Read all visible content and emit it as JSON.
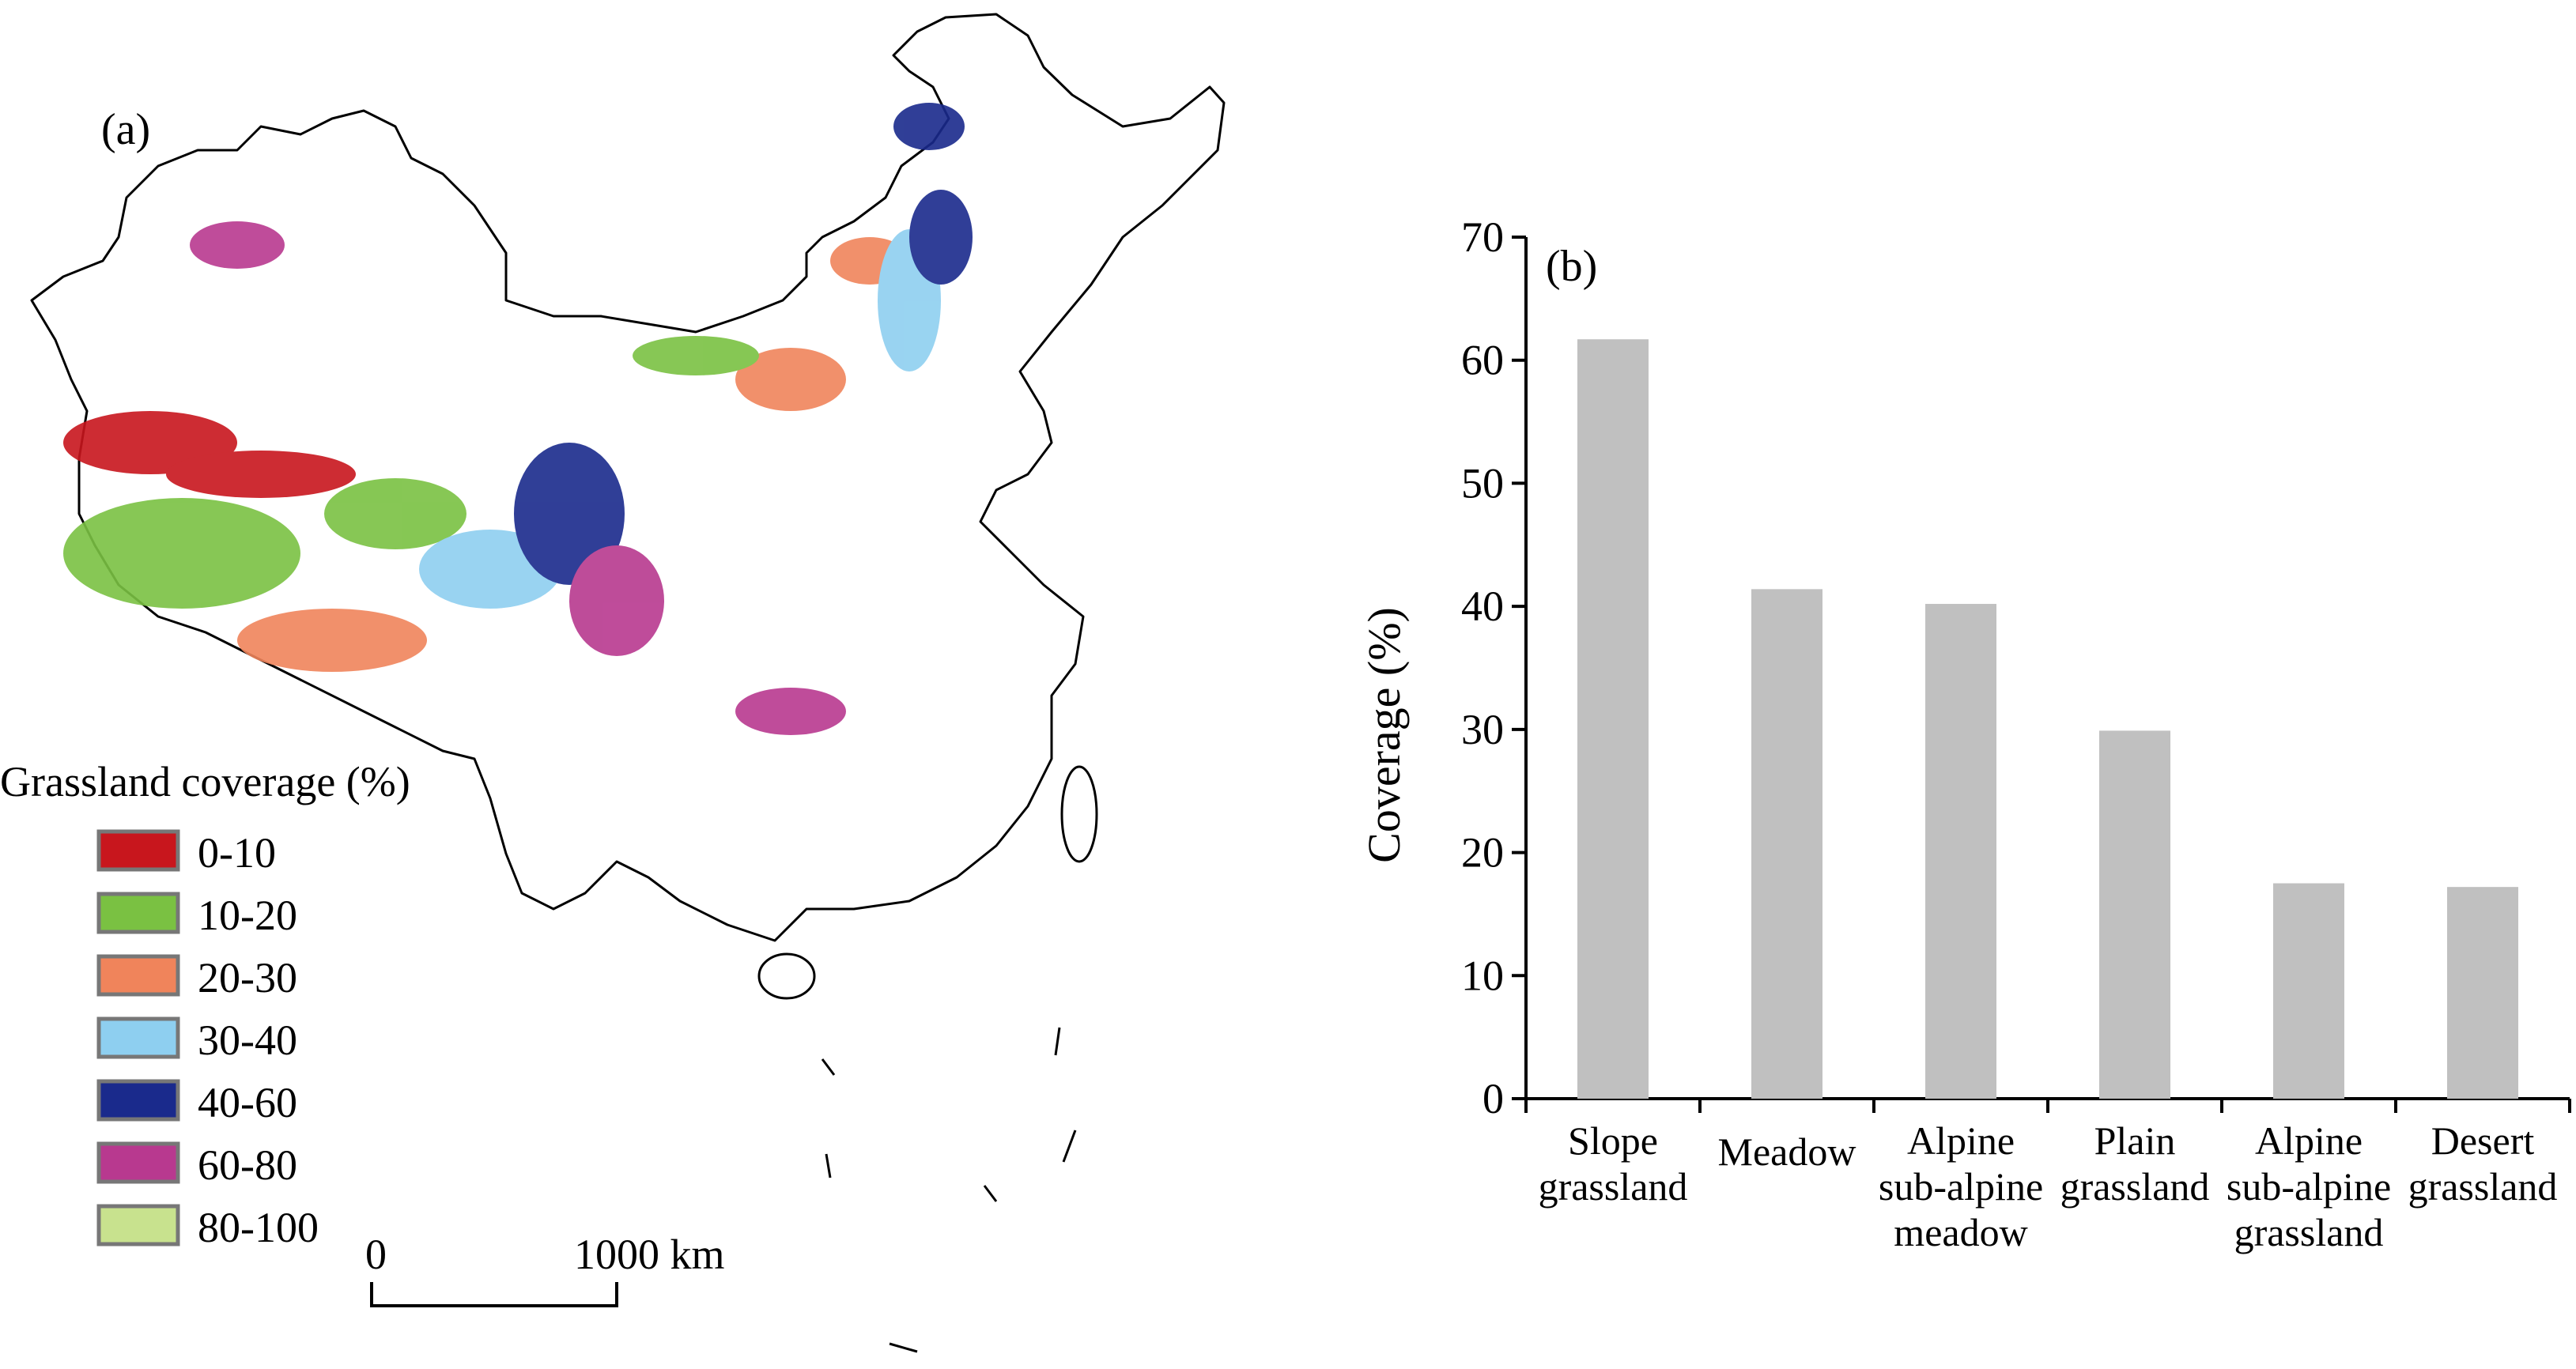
{
  "map_panel": {
    "label": "(a)",
    "legend": {
      "title": "Grassland coverage (%)",
      "items": [
        {
          "label": "0-10",
          "color": "#c8161d"
        },
        {
          "label": "10-20",
          "color": "#7ac142"
        },
        {
          "label": "20-30",
          "color": "#f0845b"
        },
        {
          "label": "30-40",
          "color": "#8ecff0"
        },
        {
          "label": "40-60",
          "color": "#1a2a8c"
        },
        {
          "label": "60-80",
          "color": "#b8398f"
        },
        {
          "label": "80-100",
          "color": "#c8e28e"
        }
      ]
    },
    "scale_bar": {
      "start_label": "0",
      "end_label": "1000 km"
    }
  },
  "chart_data": {
    "type": "bar",
    "panel_label": "(b)",
    "categories": [
      [
        "Slope",
        "grassland"
      ],
      [
        "Meadow"
      ],
      [
        "Alpine",
        "sub-alpine",
        "meadow"
      ],
      [
        "Plain",
        "grassland"
      ],
      [
        "Alpine",
        "sub-alpine",
        "grassland"
      ],
      [
        "Desert",
        "grassland"
      ]
    ],
    "values": [
      61.7,
      41.4,
      40.2,
      29.9,
      17.5,
      17.2
    ],
    "ylabel": "Coverage (%)",
    "xlabel": "",
    "ylim": [
      0,
      70
    ],
    "yticks": [
      0,
      10,
      20,
      30,
      40,
      50,
      60,
      70
    ],
    "bar_color": "#c0c0c0",
    "grid": false
  }
}
